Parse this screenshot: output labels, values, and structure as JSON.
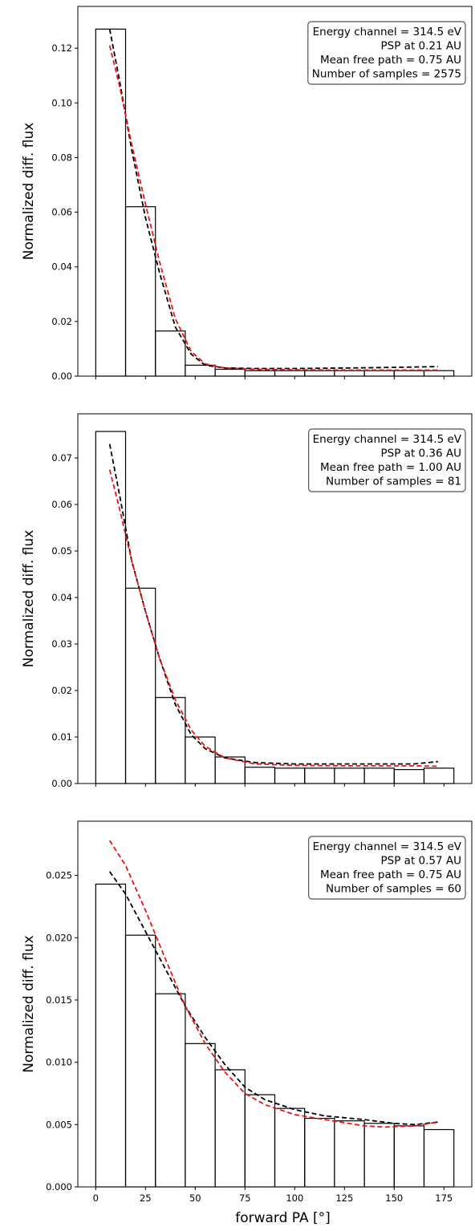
{
  "colors": {
    "model_a": "#000000",
    "model_b": "#ee1111",
    "bars": "#000000",
    "legend_border": "#555555"
  },
  "x_axis": {
    "label": "forward PA [°]",
    "ticks": [
      0,
      25,
      50,
      75,
      100,
      125,
      150,
      175
    ],
    "tick_labels": [
      "0",
      "25",
      "50",
      "75",
      "100",
      "125",
      "150",
      "175"
    ],
    "xlim": [
      -9,
      189
    ]
  },
  "chart_data": [
    {
      "type": "bar",
      "ylabel": "Normalized diff. flux",
      "ylim": [
        0,
        0.1353
      ],
      "yticks": [
        0.0,
        0.02,
        0.04,
        0.06,
        0.08,
        0.1,
        0.12
      ],
      "ytick_labels": [
        "0.00",
        "0.02",
        "0.04",
        "0.06",
        "0.08",
        "0.10",
        "0.12"
      ],
      "bin_edges": [
        0,
        15,
        30,
        45,
        60,
        75,
        90,
        105,
        120,
        135,
        150,
        165,
        180
      ],
      "values": [
        0.127,
        0.062,
        0.0165,
        0.004,
        0.0025,
        0.002,
        0.002,
        0.002,
        0.002,
        0.002,
        0.002,
        0.002
      ],
      "curve_a": {
        "x": [
          7,
          12,
          18,
          25,
          32,
          40,
          48,
          55,
          65,
          80,
          100,
          130,
          150,
          172
        ],
        "y": [
          0.127,
          0.108,
          0.083,
          0.058,
          0.038,
          0.018,
          0.008,
          0.004,
          0.003,
          0.0028,
          0.0028,
          0.003,
          0.0032,
          0.0035
        ]
      },
      "curve_b": {
        "x": [
          7,
          12,
          18,
          25,
          32,
          40,
          48,
          55,
          65,
          80,
          100,
          130,
          150,
          172
        ],
        "y": [
          0.121,
          0.106,
          0.085,
          0.063,
          0.042,
          0.021,
          0.009,
          0.0045,
          0.003,
          0.0025,
          0.0023,
          0.0022,
          0.0022,
          0.0022
        ]
      },
      "legend": {
        "position": "top-right",
        "lines": [
          "Energy channel = 314.5 eV",
          "PSP at 0.21 AU",
          "Mean free path = 0.75 AU",
          "Number of samples = 2575"
        ]
      }
    },
    {
      "type": "bar",
      "ylabel": "Normalized diff. flux",
      "ylim": [
        0,
        0.0795
      ],
      "yticks": [
        0.0,
        0.01,
        0.02,
        0.03,
        0.04,
        0.05,
        0.06,
        0.07
      ],
      "ytick_labels": [
        "0.00",
        "0.01",
        "0.02",
        "0.03",
        "0.04",
        "0.05",
        "0.06",
        "0.07"
      ],
      "bin_edges": [
        0,
        15,
        30,
        45,
        60,
        75,
        90,
        105,
        120,
        135,
        150,
        165,
        180
      ],
      "values": [
        0.0757,
        0.042,
        0.0185,
        0.01,
        0.0057,
        0.0035,
        0.0033,
        0.0033,
        0.0033,
        0.0033,
        0.003,
        0.0033
      ],
      "curve_a": {
        "x": [
          7,
          12,
          18,
          25,
          32,
          40,
          48,
          55,
          65,
          80,
          100,
          130,
          160,
          172
        ],
        "y": [
          0.073,
          0.062,
          0.048,
          0.037,
          0.027,
          0.017,
          0.0105,
          0.0075,
          0.0055,
          0.0045,
          0.0042,
          0.0042,
          0.0042,
          0.0047
        ]
      },
      "curve_b": {
        "x": [
          7,
          12,
          18,
          25,
          32,
          40,
          48,
          55,
          65,
          80,
          100,
          130,
          160,
          172
        ],
        "y": [
          0.0675,
          0.059,
          0.048,
          0.037,
          0.027,
          0.018,
          0.0115,
          0.008,
          0.0055,
          0.0042,
          0.0039,
          0.0038,
          0.0038,
          0.0037
        ]
      },
      "legend": {
        "position": "top-right",
        "lines": [
          "Energy channel = 314.5 eV",
          "PSP at 0.36 AU",
          "Mean free path = 1.00 AU",
          "Number of samples = 81"
        ]
      }
    },
    {
      "type": "bar",
      "ylabel": "Normalized diff. flux",
      "xlabel": "forward PA [°]",
      "ylim": [
        0,
        0.02935
      ],
      "yticks": [
        0.0,
        0.005,
        0.01,
        0.015,
        0.02,
        0.025
      ],
      "ytick_labels": [
        "0.000",
        "0.005",
        "0.010",
        "0.015",
        "0.020",
        "0.025"
      ],
      "bin_edges": [
        0,
        15,
        30,
        45,
        60,
        75,
        90,
        105,
        120,
        135,
        150,
        165,
        180
      ],
      "values": [
        0.0243,
        0.0202,
        0.0155,
        0.0115,
        0.0094,
        0.0074,
        0.0063,
        0.0055,
        0.0053,
        0.0051,
        0.0049,
        0.0046
      ],
      "curve_a": {
        "x": [
          7,
          15,
          25,
          35,
          45,
          55,
          65,
          75,
          85,
          100,
          115,
          135,
          150,
          160,
          172
        ],
        "y": [
          0.0253,
          0.0235,
          0.0205,
          0.0175,
          0.0145,
          0.012,
          0.0098,
          0.008,
          0.007,
          0.0062,
          0.0057,
          0.0054,
          0.0051,
          0.005,
          0.0052
        ]
      },
      "curve_b": {
        "x": [
          7,
          15,
          25,
          35,
          45,
          55,
          65,
          75,
          85,
          100,
          115,
          135,
          145,
          160,
          172
        ],
        "y": [
          0.0278,
          0.0258,
          0.0222,
          0.0183,
          0.0145,
          0.0115,
          0.0092,
          0.0075,
          0.0066,
          0.0058,
          0.0054,
          0.0049,
          0.0048,
          0.0049,
          0.0052
        ]
      },
      "legend": {
        "position": "top-right",
        "lines": [
          "Energy channel = 314.5 eV",
          "PSP at 0.57 AU",
          "Mean free path = 0.75 AU",
          "Number of samples = 60"
        ]
      }
    }
  ]
}
